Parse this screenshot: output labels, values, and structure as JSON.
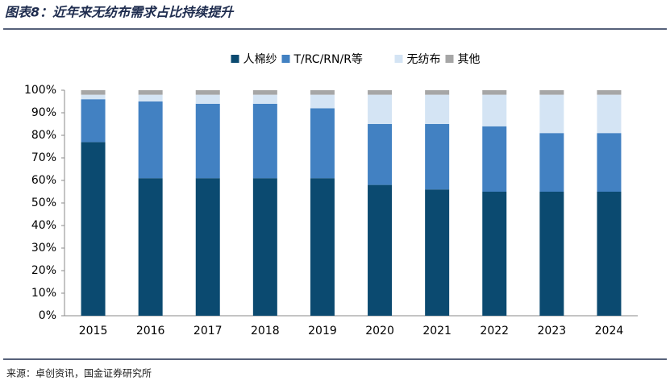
{
  "header": {
    "title": "图表8：近年来无纺布需求占比持续提升"
  },
  "chart_data": {
    "type": "stacked_bar",
    "categories": [
      "2015",
      "2016",
      "2017",
      "2018",
      "2019",
      "2020",
      "2021",
      "2022",
      "2023",
      "2024"
    ],
    "series": [
      {
        "name": "人棉纱",
        "color": "#0b4a70",
        "values": [
          77,
          61,
          61,
          61,
          61,
          58,
          56,
          55,
          55,
          55
        ]
      },
      {
        "name": "T/RC/RN/R等",
        "color": "#4281c2",
        "values": [
          19,
          34,
          33,
          33,
          31,
          27,
          29,
          29,
          26,
          26
        ]
      },
      {
        "name": "无纺布",
        "color": "#d4e4f4",
        "values": [
          2,
          3,
          4,
          4,
          6,
          13,
          13,
          14,
          17,
          17
        ]
      },
      {
        "name": "其他",
        "color": "#a6a6a6",
        "values": [
          2,
          2,
          2,
          2,
          2,
          2,
          2,
          2,
          2,
          2
        ]
      }
    ],
    "ylim": [
      0,
      100
    ],
    "yticks": [
      {
        "value": 0,
        "label": "0%"
      },
      {
        "value": 10,
        "label": "10%"
      },
      {
        "value": 20,
        "label": "20%"
      },
      {
        "value": 30,
        "label": "30%"
      },
      {
        "value": 40,
        "label": "40%"
      },
      {
        "value": 50,
        "label": "50%"
      },
      {
        "value": 60,
        "label": "60%"
      },
      {
        "value": 70,
        "label": "70%"
      },
      {
        "value": 80,
        "label": "80%"
      },
      {
        "value": 90,
        "label": "90%"
      },
      {
        "value": 100,
        "label": "100%"
      }
    ],
    "legend": "top"
  },
  "footer": {
    "source": "来源：卓创资讯，国金证券研究所"
  }
}
